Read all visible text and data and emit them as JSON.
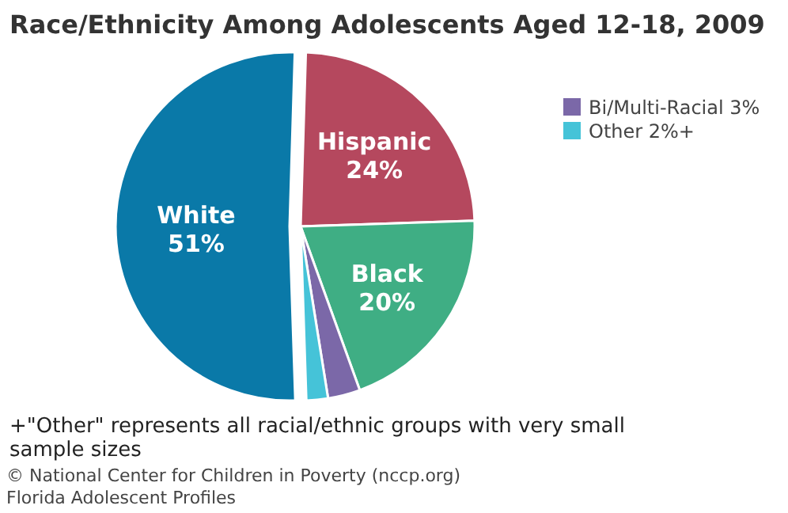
{
  "chart_data": {
    "type": "pie",
    "title": "Race/Ethnicity Among Adolescents Aged 12-18, 2009",
    "categories": [
      "Hispanic",
      "Black",
      "Bi/Multi-Racial",
      "Other",
      "White"
    ],
    "values": [
      24,
      20,
      3,
      2,
      51
    ],
    "value_labels": [
      "24%",
      "20%",
      "3%",
      "2%+",
      "51%"
    ],
    "colors": [
      "#b5485e",
      "#3fae84",
      "#7b68a8",
      "#45c3d8",
      "#0a79a8"
    ],
    "legend": "top right",
    "annotations": [
      "+\"Other\" represents all racial/ethnic groups with very small sample sizes",
      "© National Center for Children in Poverty (nccp.org)",
      "Florida Adolescent Profiles"
    ]
  }
}
